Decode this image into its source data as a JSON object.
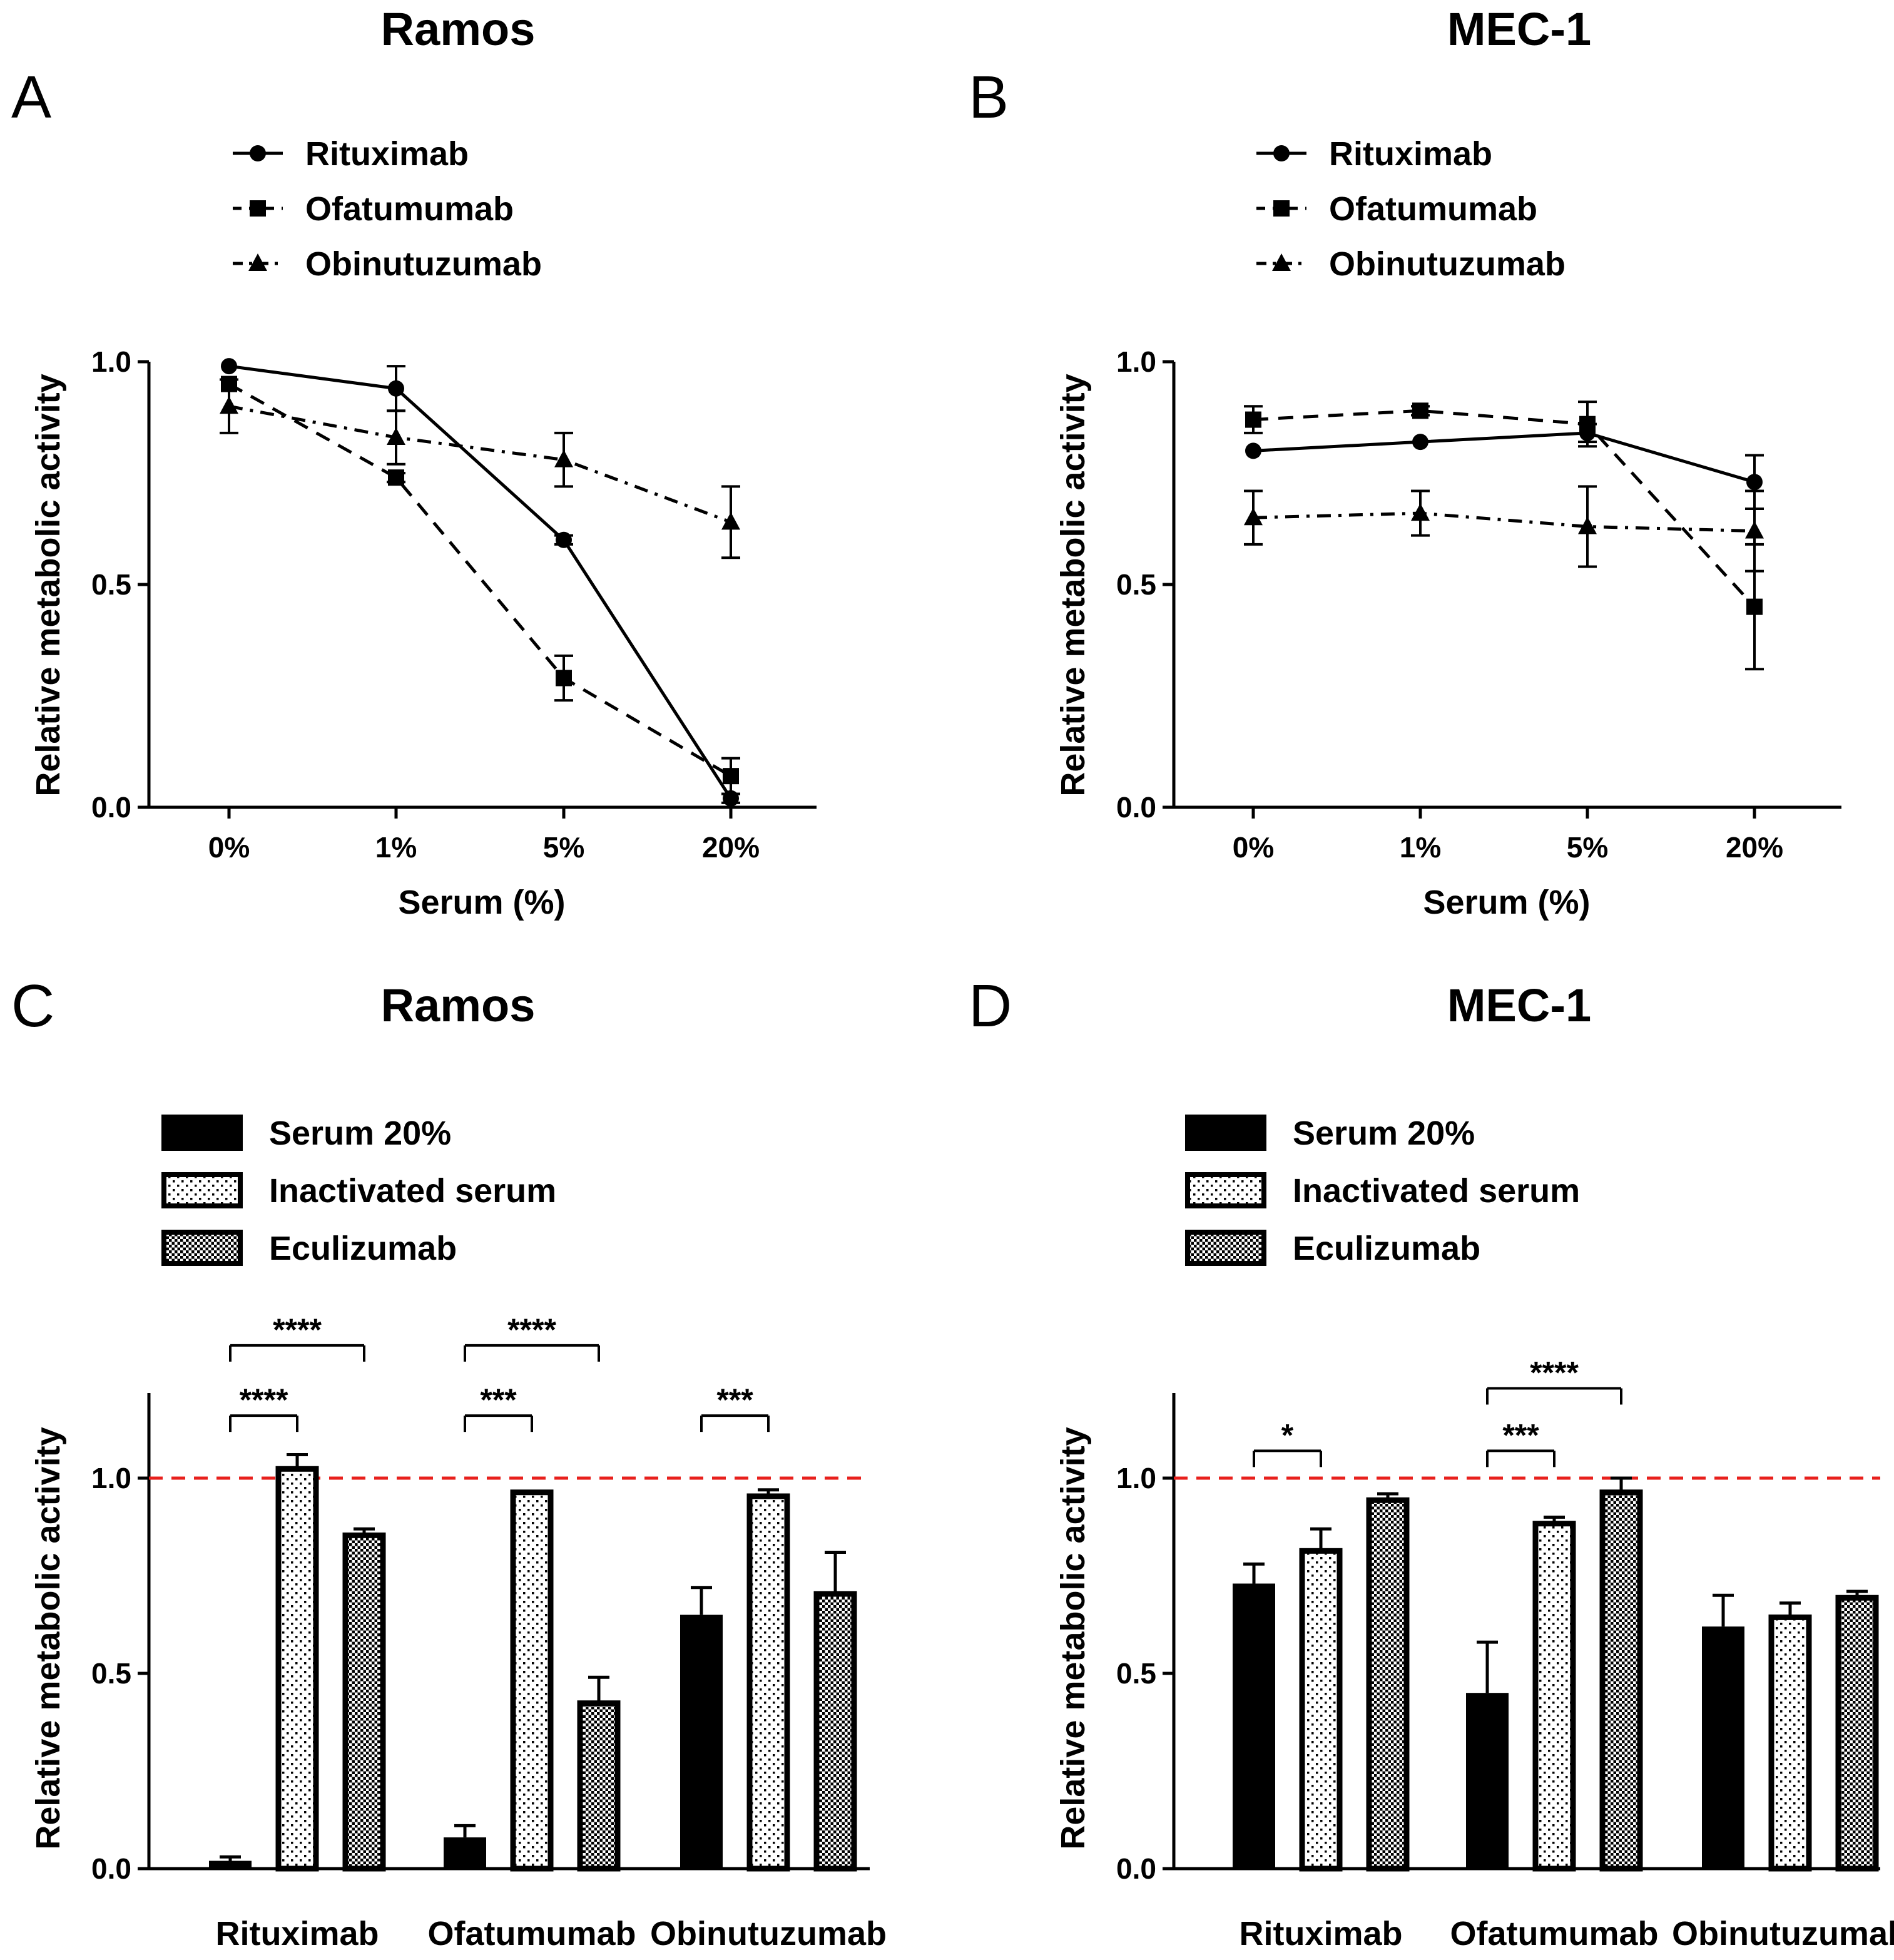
{
  "colors": {
    "line": "#000000",
    "reference": "#e8201c",
    "background": "#ffffff"
  },
  "chart_data": [
    {
      "panel": "A",
      "type": "line",
      "title": "Ramos",
      "xlabel": "Serum (%)",
      "ylabel": "Relative metabolic activity",
      "categories": [
        "0%",
        "1%",
        "5%",
        "20%"
      ],
      "ylim": [
        0,
        1
      ],
      "yticks": [
        "0.0",
        "0.5",
        "1.0"
      ],
      "legend_position": "top-left",
      "series": [
        {
          "name": "Rituximab",
          "style": "solid",
          "marker": "circle",
          "values": [
            0.99,
            0.94,
            0.6,
            0.02
          ],
          "errors": [
            0,
            0.05,
            0.01,
            0.01
          ]
        },
        {
          "name": "Ofatumumab",
          "style": "dashed",
          "marker": "square",
          "values": [
            0.95,
            0.74,
            0.29,
            0.07
          ],
          "errors": [
            0,
            0.01,
            0.05,
            0.04
          ]
        },
        {
          "name": "Obinutuzumab",
          "style": "dashdot",
          "marker": "triangle",
          "values": [
            0.9,
            0.83,
            0.78,
            0.64
          ],
          "errors": [
            0.06,
            0.06,
            0.06,
            0.08
          ]
        }
      ]
    },
    {
      "panel": "B",
      "type": "line",
      "title": "MEC-1",
      "xlabel": "Serum (%)",
      "ylabel": "Relative metabolic activity",
      "categories": [
        "0%",
        "1%",
        "5%",
        "20%"
      ],
      "ylim": [
        0,
        1
      ],
      "yticks": [
        "0.0",
        "0.5",
        "1.0"
      ],
      "legend_position": "top-left",
      "series": [
        {
          "name": "Rituximab",
          "style": "solid",
          "marker": "circle",
          "values": [
            0.8,
            0.82,
            0.84,
            0.73
          ],
          "errors": [
            0,
            0,
            0.02,
            0.06
          ]
        },
        {
          "name": "Ofatumumab",
          "style": "dashed",
          "marker": "square",
          "values": [
            0.87,
            0.89,
            0.86,
            0.45
          ],
          "errors": [
            0.03,
            0.01,
            0.05,
            0.14
          ]
        },
        {
          "name": "Obinutuzumab",
          "style": "dashdot",
          "marker": "triangle",
          "values": [
            0.65,
            0.66,
            0.63,
            0.62
          ],
          "errors": [
            0.06,
            0.05,
            0.09,
            0.09
          ]
        }
      ]
    },
    {
      "panel": "C",
      "type": "bar",
      "title": "Ramos",
      "xlabel": "",
      "ylabel": "Relative metabolic activity",
      "categories": [
        "Rituximab",
        "Ofatumumab",
        "Obinutuzumab"
      ],
      "ylim": [
        0,
        1.2
      ],
      "yticks": [
        "0.0",
        "0.5",
        "1.0"
      ],
      "reference_line": 1.0,
      "legend_position": "top-left",
      "series": [
        {
          "name": "Serum 20%",
          "pattern": "solid",
          "values": [
            0.02,
            0.08,
            0.65
          ],
          "errors": [
            0.01,
            0.03,
            0.07
          ]
        },
        {
          "name": "Inactivated serum",
          "pattern": "sparse-dots",
          "values": [
            1.03,
            0.97,
            0.96
          ],
          "errors": [
            0.03,
            0,
            0.01
          ]
        },
        {
          "name": "Eculizumab",
          "pattern": "dense-checker",
          "values": [
            0.86,
            0.43,
            0.71
          ],
          "errors": [
            0.01,
            0.06,
            0.1
          ]
        }
      ],
      "significance": [
        {
          "group": 0,
          "from": 0,
          "to": 1,
          "label": "****",
          "y": 1.16
        },
        {
          "group": 0,
          "from": 0,
          "to": 2,
          "label": "****",
          "y": 1.34
        },
        {
          "group": 1,
          "from": 0,
          "to": 1,
          "label": "***",
          "y": 1.16
        },
        {
          "group": 1,
          "from": 0,
          "to": 2,
          "label": "****",
          "y": 1.34
        },
        {
          "group": 2,
          "from": 0,
          "to": 1,
          "label": "***",
          "y": 1.16
        }
      ]
    },
    {
      "panel": "D",
      "type": "bar",
      "title": "MEC-1",
      "xlabel": "",
      "ylabel": "Relative metabolic activity",
      "categories": [
        "Rituximab",
        "Ofatumumab",
        "Obinutuzumab"
      ],
      "ylim": [
        0,
        1.2
      ],
      "yticks": [
        "0.0",
        "0.5",
        "1.0"
      ],
      "reference_line": 1.0,
      "legend_position": "top-left",
      "series": [
        {
          "name": "Serum 20%",
          "pattern": "solid",
          "values": [
            0.73,
            0.45,
            0.62
          ],
          "errors": [
            0.05,
            0.13,
            0.08
          ]
        },
        {
          "name": "Inactivated serum",
          "pattern": "sparse-dots",
          "values": [
            0.82,
            0.89,
            0.65
          ],
          "errors": [
            0.05,
            0.01,
            0.03
          ]
        },
        {
          "name": "Eculizumab",
          "pattern": "dense-checker",
          "values": [
            0.95,
            0.97,
            0.7
          ],
          "errors": [
            0.01,
            0.03,
            0.01
          ]
        }
      ],
      "significance": [
        {
          "group": 0,
          "from": 0,
          "to": 1,
          "label": "*",
          "y": 1.07
        },
        {
          "group": 1,
          "from": 0,
          "to": 1,
          "label": "***",
          "y": 1.07
        },
        {
          "group": 1,
          "from": 0,
          "to": 2,
          "label": "****",
          "y": 1.23
        }
      ]
    }
  ]
}
